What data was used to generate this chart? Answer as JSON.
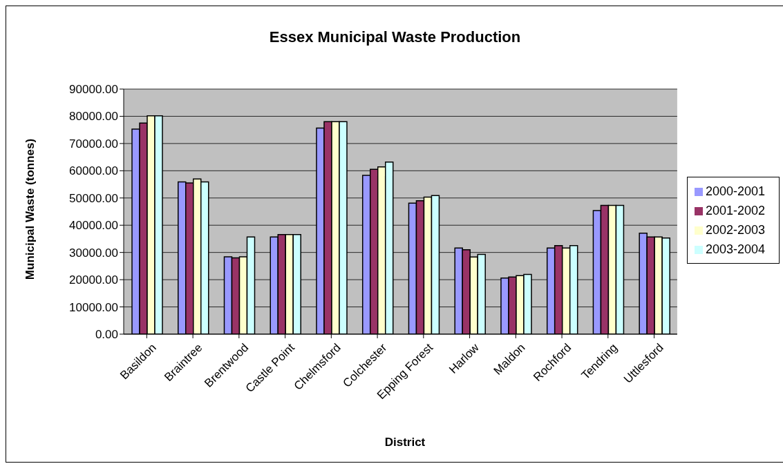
{
  "chart_data": {
    "type": "bar",
    "title": "Essex Municipal Waste Production",
    "xlabel": "District",
    "ylabel": "Municipal Waste (tonnes)",
    "categories": [
      "Basildon",
      "Braintree",
      "Brentwood",
      "Castle Point",
      "Chelmsford",
      "Colchester",
      "Epping Forest",
      "Harlow",
      "Maldon",
      "Rochford",
      "Tendring",
      "Uttlesford"
    ],
    "series": [
      {
        "name": "2000-2001",
        "color": "#9999ff",
        "values": [
          75300,
          55900,
          28400,
          35700,
          75700,
          58300,
          48100,
          31600,
          20600,
          31600,
          45400,
          37100
        ]
      },
      {
        "name": "2001-2002",
        "color": "#993366",
        "values": [
          77500,
          55500,
          28000,
          36600,
          78000,
          60500,
          49000,
          31000,
          21000,
          32500,
          47300,
          35700
        ]
      },
      {
        "name": "2002-2003",
        "color": "#ffffcc",
        "values": [
          80200,
          57000,
          28400,
          36600,
          78000,
          61400,
          50300,
          28300,
          21500,
          31600,
          47300,
          35700
        ]
      },
      {
        "name": "2003-2004",
        "color": "#ccffff",
        "values": [
          80200,
          55900,
          35700,
          36600,
          78000,
          63200,
          50900,
          29300,
          21900,
          32500,
          47300,
          35300
        ]
      }
    ],
    "ylim": [
      0,
      90000
    ],
    "yticks": [
      {
        "value": 0,
        "label": "0.00"
      },
      {
        "value": 10000,
        "label": "10000.00"
      },
      {
        "value": 20000,
        "label": "20000.00"
      },
      {
        "value": 30000,
        "label": "30000.00"
      },
      {
        "value": 40000,
        "label": "40000.00"
      },
      {
        "value": 50000,
        "label": "50000.00"
      },
      {
        "value": 60000,
        "label": "60000.00"
      },
      {
        "value": 70000,
        "label": "70000.00"
      },
      {
        "value": 80000,
        "label": "80000.00"
      },
      {
        "value": 90000,
        "label": "90000.00"
      }
    ],
    "grid": "y",
    "legend": "right"
  }
}
